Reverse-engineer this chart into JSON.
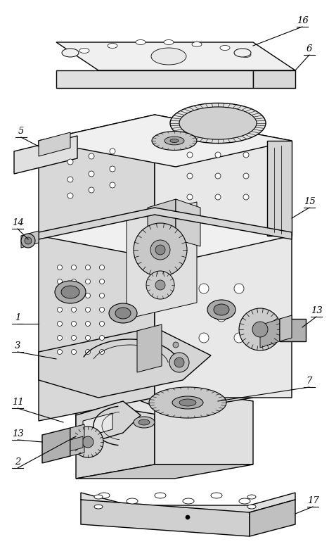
{
  "bg_color": "#ffffff",
  "line_color": "#000000",
  "fig_width": 4.68,
  "fig_height": 7.9,
  "dpi": 100,
  "gray_light": "#e8e8e8",
  "gray_mid": "#d0d0d0",
  "gray_dark": "#b0b0b0",
  "gray_darker": "#909090"
}
